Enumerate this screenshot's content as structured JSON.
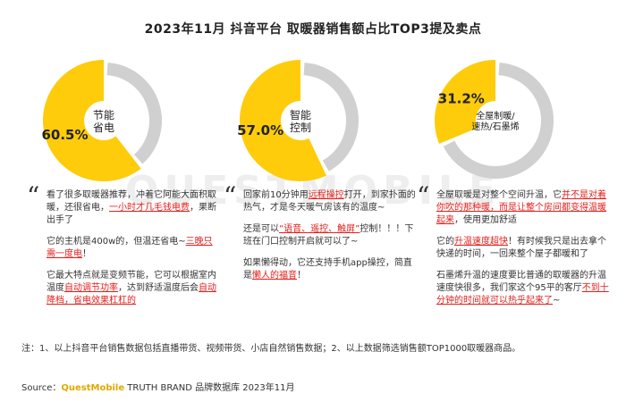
{
  "chart_data": [
    {
      "type": "pie",
      "title": "2023年11月 抖音平台 取暖器销售额占比TOP3提及卖点",
      "slices": [
        {
          "label": "节能省电",
          "value": 60.5,
          "color": "#fecc0a"
        },
        {
          "label": "",
          "value": 39.5,
          "color": "#d0d0d0"
        }
      ],
      "value_label": "60.5%",
      "center_label": [
        "节能",
        "省电"
      ]
    },
    {
      "type": "pie",
      "slices": [
        {
          "label": "智能控制",
          "value": 57.0,
          "color": "#fecc0a"
        },
        {
          "label": "",
          "value": 43.0,
          "color": "#d0d0d0"
        }
      ],
      "value_label": "57.0%",
      "center_label": [
        "智能",
        "控制"
      ]
    },
    {
      "type": "pie",
      "slices": [
        {
          "label": "全屋制暖/速热/石墨烯",
          "value": 31.2,
          "color": "#fecc0a"
        },
        {
          "label": "",
          "value": 68.8,
          "color": "#d0d0d0"
        }
      ],
      "value_label": "31.2%",
      "center_label": [
        "全屋制暖/",
        "速热/石墨烯"
      ]
    }
  ],
  "title": "2023年11月 抖音平台 取暖器销售额占比TOP3提及卖点",
  "quote_mark": "“",
  "columns": [
    {
      "paragraphs": [
        [
          {
            "t": "看了很多取暖器推荐，冲着它阿能大面积取暖，还很省电，"
          },
          {
            "t": "一小时才几毛钱电费",
            "h": true
          },
          {
            "t": "，果断出手了"
          }
        ],
        [
          {
            "t": "它的主机是400w的，但温还省电~"
          },
          {
            "t": "三晚只需一度电",
            "h": true
          },
          {
            "t": "！"
          }
        ],
        [
          {
            "t": "它最大特点就是变频节能，它可以根据室内温度"
          },
          {
            "t": "自动调节功率",
            "h": true
          },
          {
            "t": "，达到舒适温度后会"
          },
          {
            "t": "自动降档，省电效果杠杠的",
            "h": true
          }
        ]
      ]
    },
    {
      "paragraphs": [
        [
          {
            "t": "回家前10分钟用"
          },
          {
            "t": "远程操控",
            "h": true
          },
          {
            "t": "打开，到家扑面的热气，才是冬天暖气房该有的温度~"
          }
        ],
        [
          {
            "t": "还是可以"
          },
          {
            "t": "“语音、遥控、触屏”",
            "h": true
          },
          {
            "t": "控制！！！下班在门口控制开启就可以了~"
          }
        ],
        [
          {
            "t": "如果懒得动，它还支持手机app操控，简直是"
          },
          {
            "t": "懒人的福音",
            "h": true
          },
          {
            "t": "！"
          }
        ]
      ]
    },
    {
      "paragraphs": [
        [
          {
            "t": "全屋取暖是对整个空间升温，它"
          },
          {
            "t": "并不是对着你吹的那种暖，而是让整个房间都变得温暖起来",
            "h": true
          },
          {
            "t": "，使用更加舒适"
          }
        ],
        [
          {
            "t": "它的"
          },
          {
            "t": "升温速度超快",
            "h": true
          },
          {
            "t": "！有时候我只是出去拿个快递的时间，一回来整个屋子都暖和了"
          }
        ],
        [
          {
            "t": "石墨烯升温的速度要比普通的取暖器的升温速度快很多，我们家这个95平的客厅"
          },
          {
            "t": "不到十分钟的时间就可以热乎起来了",
            "h": true
          },
          {
            "t": "~"
          }
        ]
      ]
    }
  ],
  "footnote": "注：1、以上抖音平台销售数据包括直播带货、视频带货、小店自然销售数据；2、以上数据筛选销售额TOP1000取暖器商品。",
  "source": {
    "prefix": "Source：",
    "brand": "QuestMobile",
    "rest": " TRUTH BRAND 品牌数据库 2023年11月"
  },
  "watermark_text": "QUESTMOBILE",
  "colors": {
    "accent": "#fecc0a",
    "remainder": "#d0d0d0",
    "highlight": "#e0201c",
    "watermark": "#eeeeee"
  }
}
